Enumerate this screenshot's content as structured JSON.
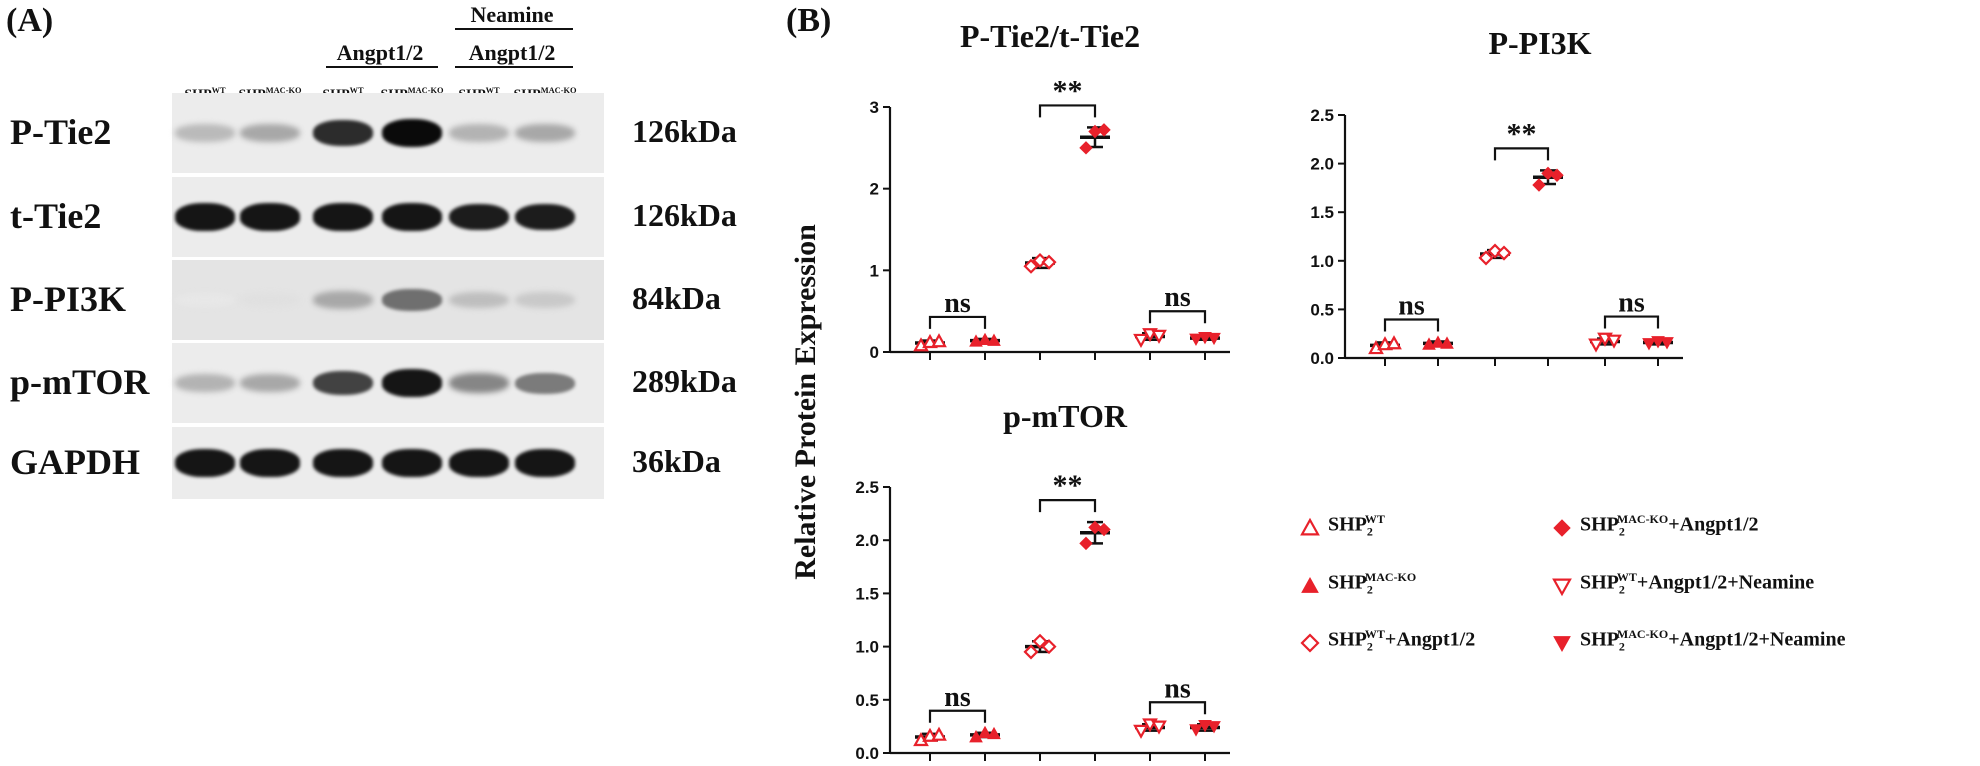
{
  "panels": {
    "a": "(A)",
    "b": "(B)"
  },
  "groups": {
    "angpt": "Angpt1/2",
    "neamine": "Neamine",
    "angpt2": "Angpt1/2"
  },
  "lanes": [
    {
      "base": "SHP",
      "sup": "WT"
    },
    {
      "base": "SHP",
      "sup": "MAC-KO"
    },
    {
      "base": "SHP",
      "sup": "WT"
    },
    {
      "base": "SHP",
      "sup": "MAC-KO"
    },
    {
      "base": "SHP",
      "sup": "WT"
    },
    {
      "base": "SHP",
      "sup": "MAC-KO"
    }
  ],
  "blots": [
    {
      "name": "P-Tie2",
      "kda": "126kDa",
      "intensity": [
        0.22,
        0.3,
        0.85,
        1.0,
        0.25,
        0.3
      ]
    },
    {
      "name": "t-Tie2",
      "kda": "126kDa",
      "intensity": [
        0.95,
        0.95,
        0.95,
        0.95,
        0.92,
        0.92
      ]
    },
    {
      "name": "P-PI3K",
      "kda": "84kDa",
      "intensity": [
        0.02,
        0.05,
        0.3,
        0.55,
        0.2,
        0.15
      ]
    },
    {
      "name": "p-mTOR",
      "kda": "289kDa",
      "intensity": [
        0.25,
        0.3,
        0.75,
        0.95,
        0.45,
        0.5
      ]
    },
    {
      "name": "GAPDH",
      "kda": "36kDa",
      "intensity": [
        0.95,
        0.95,
        0.95,
        0.95,
        0.95,
        0.95
      ]
    }
  ],
  "y_axis_label": "Relative Protein Expression",
  "legend": [
    {
      "marker": "triangle-up-open",
      "base": "SHP",
      "sub": "2",
      "sup": "WT",
      "suffix": ""
    },
    {
      "marker": "triangle-up-filled",
      "base": "SHP",
      "sub": "2",
      "sup": "MAC-KO",
      "suffix": ""
    },
    {
      "marker": "diamond-open",
      "base": "SHP",
      "sub": "2",
      "sup": "WT",
      "suffix": "+Angpt1/2"
    },
    {
      "marker": "diamond-filled",
      "base": "SHP",
      "sub": "2",
      "sup": "MAC-KO",
      "suffix": "+Angpt1/2"
    },
    {
      "marker": "triangle-down-open",
      "base": "SHP",
      "sub": "2",
      "sup": "WT",
      "suffix": "+Angpt1/2+Neamine"
    },
    {
      "marker": "triangle-down-filled",
      "base": "SHP",
      "sub": "2",
      "sup": "MAC-KO",
      "suffix": "+Angpt1/2+Neamine"
    }
  ],
  "colors": {
    "red": "#e8212b",
    "black": "#111111"
  },
  "chart_data": [
    {
      "type": "scatter",
      "title": "P-Tie2/t-Tie2",
      "ylim": [
        0,
        3
      ],
      "yticks": [
        "0",
        "1",
        "2",
        "3"
      ],
      "groups": [
        "SHP2 WT",
        "SHP2 MAC-KO",
        "SHP2 WT+Angpt1/2",
        "SHP2 MAC-KO+Angpt1/2",
        "SHP2 WT+Angpt1/2+Neamine",
        "SHP2 MAC-KO+Angpt1/2+Neamine"
      ],
      "means": [
        0.11,
        0.14,
        1.09,
        2.63,
        0.19,
        0.17
      ],
      "errors": [
        0.03,
        0.02,
        0.06,
        0.12,
        0.04,
        0.02
      ],
      "points": [
        [
          0.08,
          0.12,
          0.13
        ],
        [
          0.13,
          0.15,
          0.14
        ],
        [
          1.05,
          1.12,
          1.1
        ],
        [
          2.5,
          2.7,
          2.72
        ],
        [
          0.15,
          0.22,
          0.2
        ],
        [
          0.16,
          0.18,
          0.17
        ]
      ],
      "annotations": [
        {
          "pair": [
            0,
            1
          ],
          "text": "ns"
        },
        {
          "pair": [
            2,
            3
          ],
          "text": "**"
        },
        {
          "pair": [
            4,
            5
          ],
          "text": "ns"
        }
      ]
    },
    {
      "type": "scatter",
      "title": "P-PI3K",
      "ylim": [
        0,
        2.5
      ],
      "yticks": [
        "0.0",
        "0.5",
        "1.0",
        "1.5",
        "2.0",
        "2.5"
      ],
      "groups": [
        "SHP2 WT",
        "SHP2 MAC-KO",
        "SHP2 WT+Angpt1/2",
        "SHP2 MAC-KO+Angpt1/2",
        "SHP2 WT+Angpt1/2+Neamine",
        "SHP2 MAC-KO+Angpt1/2+Neamine"
      ],
      "means": [
        0.13,
        0.15,
        1.07,
        1.86,
        0.17,
        0.16
      ],
      "errors": [
        0.03,
        0.02,
        0.04,
        0.07,
        0.03,
        0.02
      ],
      "points": [
        [
          0.1,
          0.14,
          0.15
        ],
        [
          0.14,
          0.16,
          0.15
        ],
        [
          1.03,
          1.1,
          1.08
        ],
        [
          1.78,
          1.9,
          1.88
        ],
        [
          0.14,
          0.2,
          0.18
        ],
        [
          0.15,
          0.17,
          0.16
        ]
      ],
      "annotations": [
        {
          "pair": [
            0,
            1
          ],
          "text": "ns"
        },
        {
          "pair": [
            2,
            3
          ],
          "text": "**"
        },
        {
          "pair": [
            4,
            5
          ],
          "text": "ns"
        }
      ]
    },
    {
      "type": "scatter",
      "title": "p-mTOR",
      "ylim": [
        0,
        2.5
      ],
      "yticks": [
        "0.0",
        "0.5",
        "1.0",
        "1.5",
        "2.0",
        "2.5"
      ],
      "groups": [
        "SHP2 WT",
        "SHP2 MAC-KO",
        "SHP2 WT+Angpt1/2",
        "SHP2 MAC-KO+Angpt1/2",
        "SHP2 WT+Angpt1/2+Neamine",
        "SHP2 MAC-KO+Angpt1/2+Neamine"
      ],
      "means": [
        0.15,
        0.17,
        1.0,
        2.07,
        0.24,
        0.24
      ],
      "errors": [
        0.03,
        0.02,
        0.05,
        0.1,
        0.03,
        0.03
      ],
      "points": [
        [
          0.12,
          0.16,
          0.17
        ],
        [
          0.15,
          0.19,
          0.18
        ],
        [
          0.95,
          1.05,
          1.0
        ],
        [
          1.97,
          2.12,
          2.1
        ],
        [
          0.21,
          0.27,
          0.25
        ],
        [
          0.22,
          0.26,
          0.25
        ]
      ],
      "annotations": [
        {
          "pair": [
            0,
            1
          ],
          "text": "ns"
        },
        {
          "pair": [
            2,
            3
          ],
          "text": "**"
        },
        {
          "pair": [
            4,
            5
          ],
          "text": "ns"
        }
      ]
    }
  ]
}
